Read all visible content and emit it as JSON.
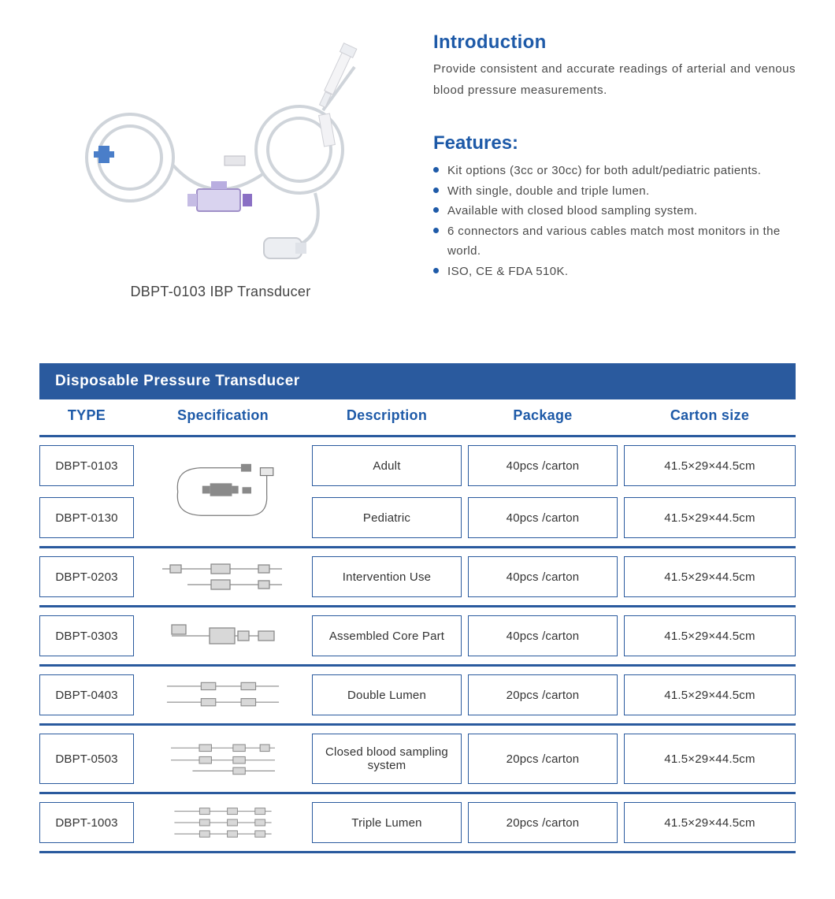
{
  "colors": {
    "heading_blue": "#1e5aa8",
    "body_text": "#4a4a4a",
    "bullet": "#1e5aa8",
    "bar_bg": "#2a5a9e",
    "bar_text": "#ffffff",
    "header_text": "#1e5aa8",
    "row_border": "#2a5a9e",
    "cell_border": "#2a5a9e"
  },
  "product": {
    "caption": "DBPT-0103 IBP Transducer"
  },
  "intro": {
    "heading": "Introduction",
    "text": "Provide consistent and accurate readings of arterial and venous blood pressure measurements."
  },
  "features": {
    "heading": "Features:",
    "items": [
      "Kit options (3cc or 30cc) for both adult/pediatric patients.",
      "With single, double and triple lumen.",
      "Available with closed blood sampling system.",
      "6 connectors and various cables match most monitors in the world.",
      "ISO, CE & FDA 510K."
    ]
  },
  "table": {
    "title": "Disposable Pressure Transducer",
    "headers": {
      "type": "TYPE",
      "spec": "Specification",
      "desc": "Description",
      "pack": "Package",
      "carton": "Carton  size"
    },
    "group1": {
      "row_a": {
        "type": "DBPT-0103",
        "desc": "Adult",
        "pack": "40pcs /carton",
        "carton": "41.5×29×44.5cm"
      },
      "row_b": {
        "type": "DBPT-0130",
        "desc": "Pediatric",
        "pack": "40pcs /carton",
        "carton": "41.5×29×44.5cm"
      }
    },
    "rows": [
      {
        "type": "DBPT-0203",
        "desc": "Intervention Use",
        "pack": "40pcs /carton",
        "carton": "41.5×29×44.5cm"
      },
      {
        "type": "DBPT-0303",
        "desc": "Assembled Core Part",
        "pack": "40pcs /carton",
        "carton": "41.5×29×44.5cm"
      },
      {
        "type": "DBPT-0403",
        "desc": "Double Lumen",
        "pack": "20pcs /carton",
        "carton": "41.5×29×44.5cm"
      },
      {
        "type": "DBPT-0503",
        "desc": "Closed blood sampling system",
        "pack": "20pcs /carton",
        "carton": "41.5×29×44.5cm"
      },
      {
        "type": "DBPT-1003",
        "desc": "Triple Lumen",
        "pack": "20pcs /carton",
        "carton": "41.5×29×44.5cm"
      }
    ]
  }
}
